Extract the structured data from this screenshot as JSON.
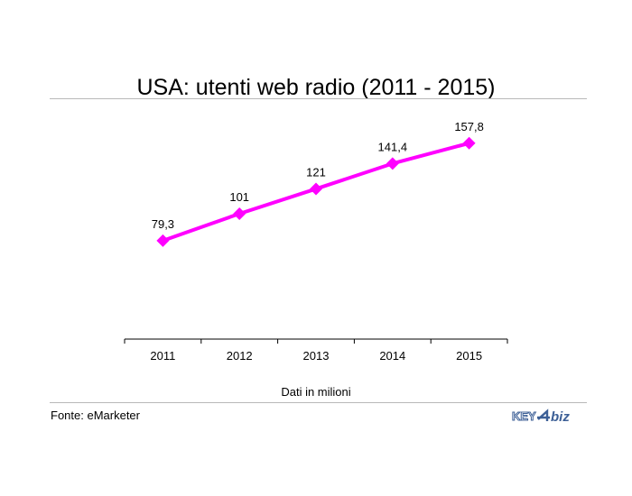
{
  "header": {
    "title": "USA: utenti web radio (2011 - 2015)"
  },
  "chart_data": {
    "type": "line",
    "title": "USA: utenti web radio (2011 - 2015)",
    "categories": [
      "2011",
      "2012",
      "2013",
      "2014",
      "2015"
    ],
    "series": [
      {
        "values": [
          79.3,
          101,
          121,
          141.4,
          157.8
        ],
        "labels": [
          "79,3",
          "101",
          "121",
          "141,4",
          "157,8"
        ]
      }
    ],
    "xlabel": "Dati in milioni",
    "ylabel": "",
    "ylim": [
      0,
      170
    ],
    "grid": false,
    "color": "#ff00ff"
  },
  "footer": {
    "source": "Fonte: eMarketer",
    "logo_text": "KEY4biz"
  }
}
